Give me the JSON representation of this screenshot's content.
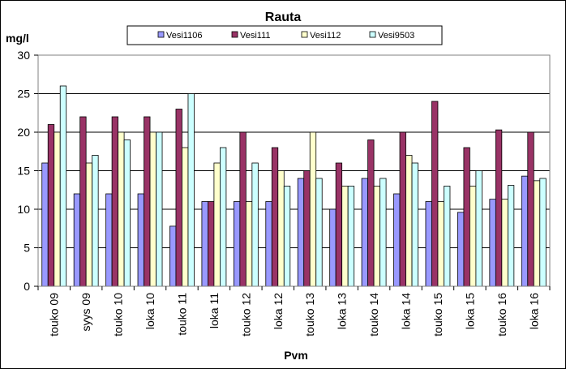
{
  "chart_data": {
    "type": "bar",
    "title": "Rauta",
    "xlabel": "Pvm",
    "ylabel": "mg/l",
    "ylim": [
      0,
      30
    ],
    "yticks": [
      0,
      5,
      10,
      15,
      20,
      25,
      30
    ],
    "grid": true,
    "legend_position": "top",
    "categories": [
      "touko 09",
      "syys 09",
      "touko 10",
      "loka 10",
      "touko 11",
      "loka 11",
      "touko 12",
      "loka 12",
      "touko 13",
      "loka 13",
      "touko 14",
      "loka 14",
      "touko 15",
      "loka 15",
      "touko 16",
      "loka 16"
    ],
    "series": [
      {
        "name": "Vesi1106",
        "color": "#9999ff",
        "values": [
          16,
          12,
          12,
          12,
          7.8,
          11,
          11,
          11,
          14,
          10,
          14,
          12,
          11,
          9.6,
          11.3,
          14.3
        ]
      },
      {
        "name": "Vesi111",
        "color": "#993366",
        "values": [
          21,
          22,
          22,
          22,
          23,
          11,
          20,
          18,
          15,
          16,
          19,
          20,
          24,
          18,
          20.3,
          20
        ]
      },
      {
        "name": "Vesi112",
        "color": "#ffffcc",
        "values": [
          20,
          16,
          20,
          20,
          18,
          16,
          11,
          15,
          20,
          13,
          13,
          17,
          11,
          13,
          11.3,
          13.7
        ]
      },
      {
        "name": "Vesi9503",
        "color": "#ccffff",
        "values": [
          26,
          17,
          19,
          20,
          25,
          18,
          16,
          13,
          14,
          13,
          14,
          16,
          13,
          15,
          13.1,
          14
        ]
      }
    ]
  }
}
